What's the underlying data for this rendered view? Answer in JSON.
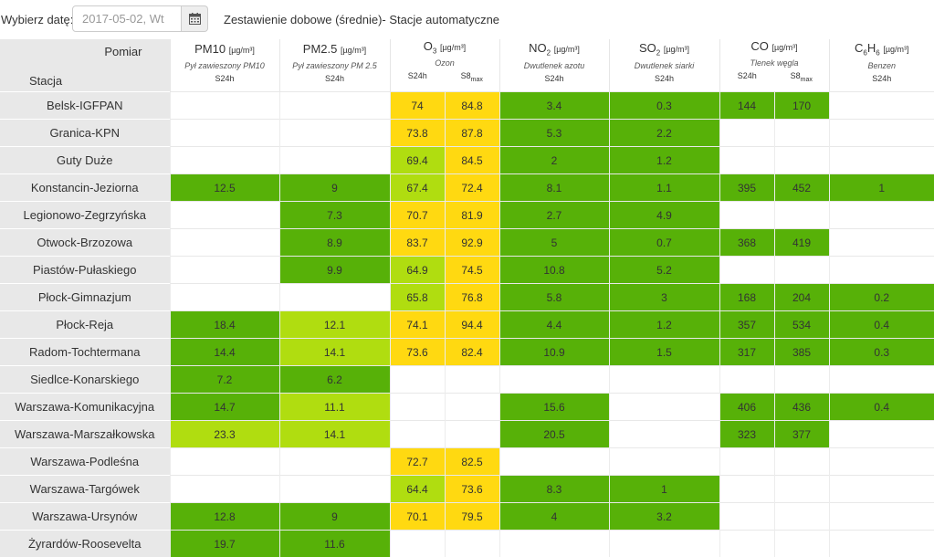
{
  "toolbar": {
    "date_label": "Wybierz datę:",
    "date_value": "2017-05-02, Wt",
    "heading": "Zestawienie dobowe (średnie)- Stacje automatyczne"
  },
  "icons": {
    "calendar": "calendar-icon"
  },
  "colors": {
    "green": "#57b108",
    "light_green": "#b0dd10",
    "yellow": "#ffd911",
    "header_gray": "#e8e8e8"
  },
  "table": {
    "corner_top": "Pomiar",
    "corner_bottom": "Stacja",
    "pollutants": [
      {
        "id": "pm10",
        "name": "PM10",
        "sub": "",
        "unit": "[µg/m³]",
        "desc": "Pył zawieszony PM10",
        "measures": [
          "S24h"
        ]
      },
      {
        "id": "pm25",
        "name": "PM2.5",
        "sub": "",
        "unit": "[µg/m³]",
        "desc": "Pył zawieszony PM 2.5",
        "measures": [
          "S24h"
        ]
      },
      {
        "id": "o3",
        "name": "O",
        "sub": "3",
        "unit": "[µg/m³]",
        "desc": "Ozon",
        "measures": [
          "S24h",
          "S8max"
        ]
      },
      {
        "id": "no2",
        "name": "NO",
        "sub": "2",
        "unit": "[µg/m³]",
        "desc": "Dwutlenek azotu",
        "measures": [
          "S24h"
        ]
      },
      {
        "id": "so2",
        "name": "SO",
        "sub": "2",
        "unit": "[µg/m³]",
        "desc": "Dwutlenek siarki",
        "measures": [
          "S24h"
        ]
      },
      {
        "id": "co",
        "name": "CO",
        "sub": "",
        "unit": "[µg/m³]",
        "desc": "Tlenek węgla",
        "measures": [
          "S24h",
          "S8max"
        ]
      },
      {
        "id": "c6h6",
        "name": "C6H6",
        "sub": "",
        "unit": "[µg/m³]",
        "desc": "Benzen",
        "measures": [
          "S24h"
        ]
      }
    ],
    "rows": [
      {
        "station": "Belsk-IGFPAN",
        "cells": [
          [
            "",
            ""
          ],
          [
            "",
            ""
          ],
          [
            "74",
            "y"
          ],
          [
            "84.8",
            "y"
          ],
          [
            "3.4",
            "g"
          ],
          [
            "0.3",
            "g"
          ],
          [
            "144",
            "g"
          ],
          [
            "170",
            "g"
          ],
          [
            "",
            ""
          ]
        ]
      },
      {
        "station": "Granica-KPN",
        "cells": [
          [
            "",
            ""
          ],
          [
            "",
            ""
          ],
          [
            "73.8",
            "y"
          ],
          [
            "87.8",
            "y"
          ],
          [
            "5.3",
            "g"
          ],
          [
            "2.2",
            "g"
          ],
          [
            "",
            ""
          ],
          [
            "",
            ""
          ],
          [
            "",
            ""
          ]
        ]
      },
      {
        "station": "Guty Duże",
        "cells": [
          [
            "",
            ""
          ],
          [
            "",
            ""
          ],
          [
            "69.4",
            "lg"
          ],
          [
            "84.5",
            "y"
          ],
          [
            "2",
            "g"
          ],
          [
            "1.2",
            "g"
          ],
          [
            "",
            ""
          ],
          [
            "",
            ""
          ],
          [
            "",
            ""
          ]
        ]
      },
      {
        "station": "Konstancin-Jeziorna",
        "cells": [
          [
            "12.5",
            "g"
          ],
          [
            "9",
            "g"
          ],
          [
            "67.4",
            "lg"
          ],
          [
            "72.4",
            "y"
          ],
          [
            "8.1",
            "g"
          ],
          [
            "1.1",
            "g"
          ],
          [
            "395",
            "g"
          ],
          [
            "452",
            "g"
          ],
          [
            "1",
            "g"
          ]
        ]
      },
      {
        "station": "Legionowo-Zegrzyńska",
        "cells": [
          [
            "",
            ""
          ],
          [
            "7.3",
            "g"
          ],
          [
            "70.7",
            "y"
          ],
          [
            "81.9",
            "y"
          ],
          [
            "2.7",
            "g"
          ],
          [
            "4.9",
            "g"
          ],
          [
            "",
            ""
          ],
          [
            "",
            ""
          ],
          [
            "",
            ""
          ]
        ]
      },
      {
        "station": "Otwock-Brzozowa",
        "cells": [
          [
            "",
            ""
          ],
          [
            "8.9",
            "g"
          ],
          [
            "83.7",
            "y"
          ],
          [
            "92.9",
            "y"
          ],
          [
            "5",
            "g"
          ],
          [
            "0.7",
            "g"
          ],
          [
            "368",
            "g"
          ],
          [
            "419",
            "g"
          ],
          [
            "",
            ""
          ]
        ]
      },
      {
        "station": "Piastów-Pułaskiego",
        "cells": [
          [
            "",
            ""
          ],
          [
            "9.9",
            "g"
          ],
          [
            "64.9",
            "lg"
          ],
          [
            "74.5",
            "y"
          ],
          [
            "10.8",
            "g"
          ],
          [
            "5.2",
            "g"
          ],
          [
            "",
            ""
          ],
          [
            "",
            ""
          ],
          [
            "",
            ""
          ]
        ]
      },
      {
        "station": "Płock-Gimnazjum",
        "cells": [
          [
            "",
            ""
          ],
          [
            "",
            ""
          ],
          [
            "65.8",
            "lg"
          ],
          [
            "76.8",
            "y"
          ],
          [
            "5.8",
            "g"
          ],
          [
            "3",
            "g"
          ],
          [
            "168",
            "g"
          ],
          [
            "204",
            "g"
          ],
          [
            "0.2",
            "g"
          ]
        ]
      },
      {
        "station": "Płock-Reja",
        "cells": [
          [
            "18.4",
            "g"
          ],
          [
            "12.1",
            "lg"
          ],
          [
            "74.1",
            "y"
          ],
          [
            "94.4",
            "y"
          ],
          [
            "4.4",
            "g"
          ],
          [
            "1.2",
            "g"
          ],
          [
            "357",
            "g"
          ],
          [
            "534",
            "g"
          ],
          [
            "0.4",
            "g"
          ]
        ]
      },
      {
        "station": "Radom-Tochtermana",
        "cells": [
          [
            "14.4",
            "g"
          ],
          [
            "14.1",
            "lg"
          ],
          [
            "73.6",
            "y"
          ],
          [
            "82.4",
            "y"
          ],
          [
            "10.9",
            "g"
          ],
          [
            "1.5",
            "g"
          ],
          [
            "317",
            "g"
          ],
          [
            "385",
            "g"
          ],
          [
            "0.3",
            "g"
          ]
        ]
      },
      {
        "station": "Siedlce-Konarskiego",
        "cells": [
          [
            "7.2",
            "g"
          ],
          [
            "6.2",
            "g"
          ],
          [
            "",
            ""
          ],
          [
            "",
            ""
          ],
          [
            "",
            ""
          ],
          [
            "",
            ""
          ],
          [
            "",
            ""
          ],
          [
            "",
            ""
          ],
          [
            "",
            ""
          ]
        ]
      },
      {
        "station": "Warszawa-Komunikacyjna",
        "cells": [
          [
            "14.7",
            "g"
          ],
          [
            "11.1",
            "lg"
          ],
          [
            "",
            ""
          ],
          [
            "",
            ""
          ],
          [
            "15.6",
            "g"
          ],
          [
            "",
            ""
          ],
          [
            "406",
            "g"
          ],
          [
            "436",
            "g"
          ],
          [
            "0.4",
            "g"
          ]
        ]
      },
      {
        "station": "Warszawa-Marszałkowska",
        "cells": [
          [
            "23.3",
            "lg"
          ],
          [
            "14.1",
            "lg"
          ],
          [
            "",
            ""
          ],
          [
            "",
            ""
          ],
          [
            "20.5",
            "g"
          ],
          [
            "",
            ""
          ],
          [
            "323",
            "g"
          ],
          [
            "377",
            "g"
          ],
          [
            "",
            ""
          ]
        ]
      },
      {
        "station": "Warszawa-Podleśna",
        "cells": [
          [
            "",
            ""
          ],
          [
            "",
            ""
          ],
          [
            "72.7",
            "y"
          ],
          [
            "82.5",
            "y"
          ],
          [
            "",
            ""
          ],
          [
            "",
            ""
          ],
          [
            "",
            ""
          ],
          [
            "",
            ""
          ],
          [
            "",
            ""
          ]
        ]
      },
      {
        "station": "Warszawa-Targówek",
        "cells": [
          [
            "",
            ""
          ],
          [
            "",
            ""
          ],
          [
            "64.4",
            "lg"
          ],
          [
            "73.6",
            "y"
          ],
          [
            "8.3",
            "g"
          ],
          [
            "1",
            "g"
          ],
          [
            "",
            ""
          ],
          [
            "",
            ""
          ],
          [
            "",
            ""
          ]
        ]
      },
      {
        "station": "Warszawa-Ursynów",
        "cells": [
          [
            "12.8",
            "g"
          ],
          [
            "9",
            "g"
          ],
          [
            "70.1",
            "y"
          ],
          [
            "79.5",
            "y"
          ],
          [
            "4",
            "g"
          ],
          [
            "3.2",
            "g"
          ],
          [
            "",
            ""
          ],
          [
            "",
            ""
          ],
          [
            "",
            ""
          ]
        ]
      },
      {
        "station": "Żyrardów-Roosevelta",
        "cells": [
          [
            "19.7",
            "g"
          ],
          [
            "11.6",
            "g"
          ],
          [
            "",
            ""
          ],
          [
            "",
            ""
          ],
          [
            "",
            ""
          ],
          [
            "",
            ""
          ],
          [
            "",
            ""
          ],
          [
            "",
            ""
          ],
          [
            "",
            ""
          ]
        ]
      }
    ]
  }
}
